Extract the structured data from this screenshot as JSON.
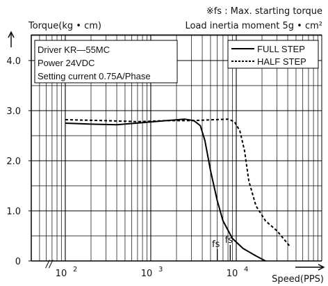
{
  "chart_data": {
    "type": "line",
    "note_line1": "※fs : Max. starting torque",
    "note_line2": "Load inertia moment 5g • cm²",
    "ylabel": "Torque(kg • cm)",
    "xlabel": "Speed(PPS)",
    "x_scale": "log",
    "xlim": [
      40,
      100000
    ],
    "ylim": [
      0,
      4.5
    ],
    "grid": true,
    "y_ticks": [
      {
        "v": 0,
        "label": "0"
      },
      {
        "v": 1,
        "label": "1.0"
      },
      {
        "v": 2,
        "label": "2.0"
      },
      {
        "v": 3,
        "label": "3.0"
      },
      {
        "v": 4,
        "label": "4.0"
      }
    ],
    "x_ticks": [
      {
        "v": 100,
        "base": "10",
        "exp": "2"
      },
      {
        "v": 1000,
        "base": "10",
        "exp": "3"
      },
      {
        "v": 10000,
        "base": "10",
        "exp": "4"
      }
    ],
    "info_lines": [
      "Driver KR—55MC",
      "Power 24VDC",
      "Setting current 0.75A/Phase"
    ],
    "legend_position": "top-right",
    "series": [
      {
        "name": "FULL STEP",
        "style": "solid",
        "points": [
          [
            100,
            2.75
          ],
          [
            200,
            2.73
          ],
          [
            400,
            2.72
          ],
          [
            800,
            2.76
          ],
          [
            1500,
            2.8
          ],
          [
            2500,
            2.83
          ],
          [
            3200,
            2.8
          ],
          [
            3800,
            2.7
          ],
          [
            4300,
            2.4
          ],
          [
            5000,
            1.8
          ],
          [
            6000,
            1.2
          ],
          [
            7000,
            0.8
          ],
          [
            9000,
            0.45
          ],
          [
            12000,
            0.25
          ],
          [
            17000,
            0.1
          ],
          [
            22000,
            0.0
          ]
        ]
      },
      {
        "name": "HALF STEP",
        "style": "dashed",
        "points": [
          [
            100,
            2.82
          ],
          [
            300,
            2.8
          ],
          [
            700,
            2.78
          ],
          [
            1500,
            2.8
          ],
          [
            3000,
            2.8
          ],
          [
            5500,
            2.82
          ],
          [
            8000,
            2.83
          ],
          [
            9500,
            2.78
          ],
          [
            11000,
            2.6
          ],
          [
            12500,
            2.2
          ],
          [
            14000,
            1.6
          ],
          [
            17000,
            1.1
          ],
          [
            22000,
            0.8
          ],
          [
            30000,
            0.6
          ],
          [
            42000,
            0.3
          ]
        ]
      }
    ],
    "fs_markers": [
      {
        "label": "fs",
        "x": 6000,
        "series": "FULL STEP"
      },
      {
        "label": "fs",
        "x": 8500,
        "series": "HALF STEP"
      }
    ],
    "break_mark": "//"
  }
}
